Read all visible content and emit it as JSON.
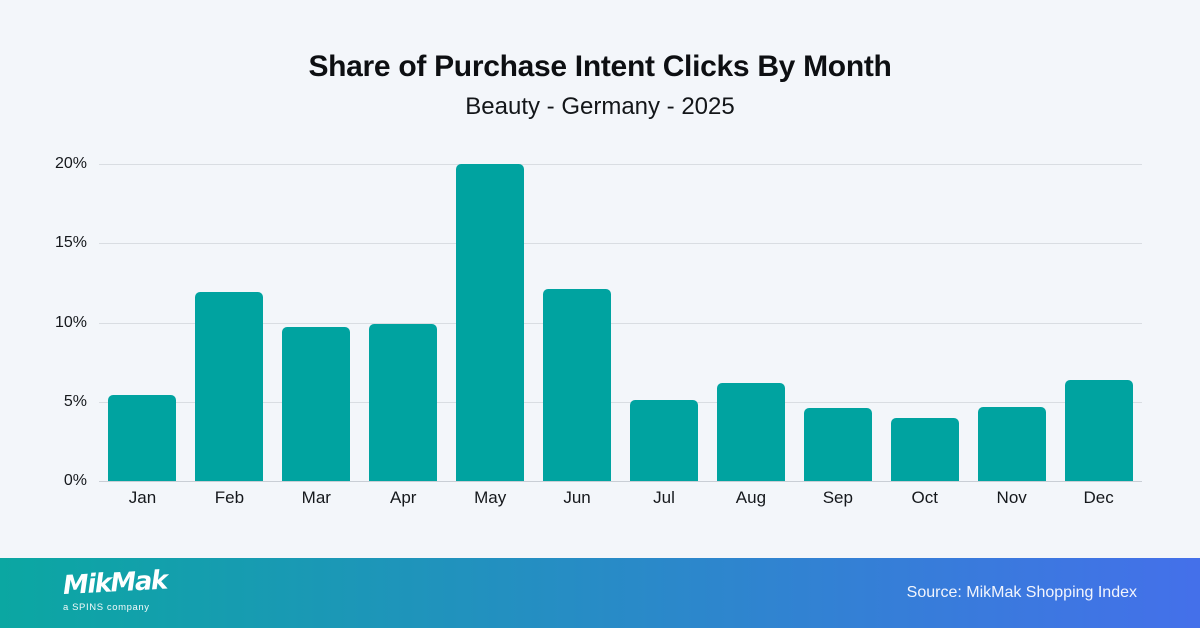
{
  "background_color": "#f3f6fa",
  "header": {
    "title": "Share of Purchase Intent Clicks By Month",
    "subtitle": "Beauty - Germany - 2025"
  },
  "chart_data": {
    "type": "bar",
    "title": "Share of Purchase Intent Clicks By Month",
    "subtitle": "Beauty - Germany - 2025",
    "categories": [
      "Jan",
      "Feb",
      "Mar",
      "Apr",
      "May",
      "Jun",
      "Jul",
      "Aug",
      "Sep",
      "Oct",
      "Nov",
      "Dec"
    ],
    "values": [
      5.4,
      11.9,
      9.7,
      9.9,
      20.0,
      12.1,
      5.1,
      6.2,
      4.6,
      4.0,
      4.7,
      6.4
    ],
    "unit": "%",
    "xlabel": "",
    "ylabel": "",
    "ylim": [
      0,
      20
    ],
    "y_ticks": [
      {
        "value": 20,
        "label": "20%"
      },
      {
        "value": 15,
        "label": "15%"
      },
      {
        "value": 10,
        "label": "10%"
      },
      {
        "value": 5,
        "label": "5%"
      },
      {
        "value": 0,
        "label": "0%"
      }
    ],
    "grid": true,
    "legend": false,
    "bar_color": "#00a3a0"
  },
  "footer": {
    "logo_text": "MikMak",
    "logo_subtext": "a SPINS company",
    "source_text": "Source: MikMak Shopping Index",
    "gradient_left": "#0ba7a2",
    "gradient_right": "#4470ea"
  }
}
